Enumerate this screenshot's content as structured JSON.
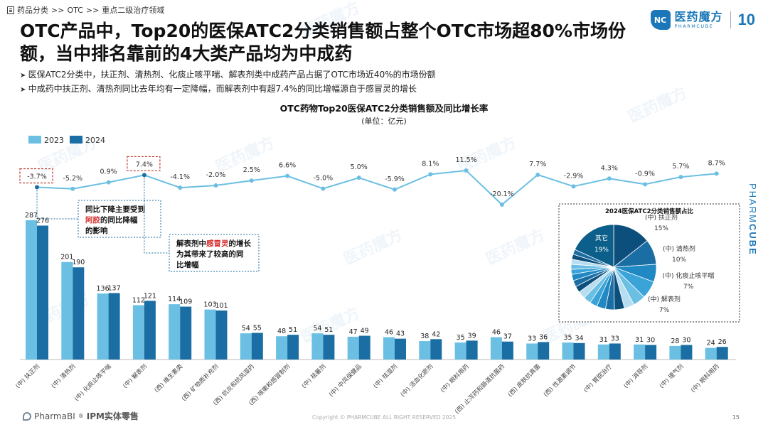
{
  "breadcrumb": [
    "药品分类",
    ">>",
    "OTC",
    ">>",
    "重点二级治疗领域"
  ],
  "logo": {
    "name": "医药魔方",
    "sub": "PHARMCUBE",
    "badge": "10",
    "mark": "NC"
  },
  "watermark_text": "医药魔方",
  "title": "OTC产品中，Top20的医保ATC2分类销售额占整个OTC市场超80%市场份额，当中排名靠前的4大类产品均为中成药",
  "bullets": [
    "医保ATC2分类中，扶正剂、清热剂、化痰止咳平喘、解表剂类中成药产品占据了OTC市场近40%的市场份额",
    "中成药中扶正剂、清热剂同比去年均有一定降幅，而解表剂中有超7.4%的同比增幅源自于感冒灵的增长"
  ],
  "side_brand": {
    "normal": "PHARM",
    "bold": "CUBE"
  },
  "colors": {
    "y2023": "#6bbfe3",
    "y2024": "#1a6ea3",
    "growth": "#6bbfe3",
    "dashed": "#c0392b",
    "callout": "#1a6ea3"
  },
  "chart_data": {
    "type": "bar",
    "title": "OTC药物Top20医保ATC2分类销售额及同比增长率",
    "subtitle": "(单位：亿元)",
    "legend": [
      "2023",
      "2024"
    ],
    "categories": [
      "(中) 扶正剂",
      "(中) 清热剂",
      "(中) 化痰止咳平喘",
      "(中) 解表剂",
      "(西) 维生素类",
      "(西) 矿物质补充剂",
      "(西) 抗炎和抗风湿药",
      "(西) 咳嗽和感冒制剂",
      "(中) 祛暑剂",
      "(中) 中风保健品",
      "(中) 祛湿剂",
      "(中) 活血化瘀剂",
      "(中) 眼科用药",
      "(西) 止泻药和肠道抗菌药",
      "(西) 皮肤抗真菌",
      "(西) 性激素调节",
      "(中) 胃脘治疗",
      "(中) 消导剂",
      "(中) 理气剂",
      "(中) 眼科用药"
    ],
    "series": [
      {
        "name": "2023",
        "values": [
          287,
          201,
          136,
          112,
          114,
          103,
          54,
          48,
          54,
          47,
          46,
          38,
          35,
          46,
          33,
          35,
          31,
          31,
          28,
          24
        ]
      },
      {
        "name": "2024",
        "values": [
          276,
          190,
          137,
          121,
          109,
          101,
          55,
          51,
          51,
          49,
          43,
          42,
          39,
          37,
          36,
          34,
          33,
          30,
          30,
          26
        ]
      }
    ],
    "bar_labels_2023": [
      "287",
      "201",
      "136",
      "112",
      "114",
      "103",
      "54",
      "48",
      "54",
      "47",
      "46",
      "38",
      "35",
      "46",
      "33",
      "35",
      "31",
      "31",
      "28",
      "24"
    ],
    "bar_labels_2024": [
      "276",
      "190",
      "137",
      "121",
      "109",
      "101",
      "55",
      "51",
      "51",
      "49",
      "43",
      "42",
      "39",
      "37",
      "36",
      "34",
      "33",
      "30",
      "30",
      "26"
    ],
    "growth_rates": [
      -3.7,
      -5.2,
      0.9,
      7.4,
      -4.1,
      -2.0,
      2.5,
      6.6,
      -5.0,
      5.0,
      -5.9,
      8.1,
      11.5,
      -20.1,
      7.7,
      -2.9,
      4.3,
      -0.9,
      5.7,
      8.7
    ],
    "growth_labels": [
      "-3.7%",
      "-5.2%",
      "0.9%",
      "7.4%",
      "-4.1%",
      "-2.0%",
      "2.5%",
      "6.6%",
      "-5.0%",
      "5.0%",
      "-5.9%",
      "8.1%",
      "11.5%",
      "-20.1%",
      "7.7%",
      "-2.9%",
      "4.3%",
      "-0.9%",
      "5.7%",
      "8.7%"
    ],
    "ylim": [
      0,
      310
    ],
    "callouts": [
      {
        "index": 0,
        "parts": [
          {
            "t": "同比下降主要受到"
          },
          {
            "t": "阿胶",
            "red": true
          },
          {
            "t": "的同比降幅的影响"
          }
        ]
      },
      {
        "index": 3,
        "parts": [
          {
            "t": "解表剂中"
          },
          {
            "t": "感冒灵",
            "red": true
          },
          {
            "t": "的增长为其带来了较高的同比增幅"
          }
        ]
      }
    ],
    "inset": {
      "type": "pie",
      "title": "2024医保ATC2分类销售额占比",
      "slices": [
        {
          "label": "(中) 扶正剂",
          "value": 15,
          "pct": "15%",
          "color": "#0d4f7c"
        },
        {
          "label": "(中) 清热剂",
          "value": 10,
          "pct": "10%",
          "color": "#1a6ea3"
        },
        {
          "label": "(中) 化痰止咳平喘",
          "value": 7,
          "pct": "7%",
          "color": "#2088c2"
        },
        {
          "label": "(中) 解表剂",
          "value": 7,
          "pct": "7%",
          "color": "#3aa3d8"
        },
        {
          "label": "",
          "value": 5,
          "color": "#6bbfe3"
        },
        {
          "label": "",
          "value": 4,
          "color": "#b7ddf0"
        },
        {
          "label": "",
          "value": 4,
          "color": "#0d4f7c"
        },
        {
          "label": "",
          "value": 3.5,
          "color": "#1a6ea3"
        },
        {
          "label": "",
          "value": 3.5,
          "color": "#2088c2"
        },
        {
          "label": "",
          "value": 3,
          "color": "#3aa3d8"
        },
        {
          "label": "",
          "value": 3,
          "color": "#6bbfe3"
        },
        {
          "label": "",
          "value": 3,
          "color": "#b7ddf0"
        },
        {
          "label": "",
          "value": 2.5,
          "color": "#0d4f7c"
        },
        {
          "label": "",
          "value": 2.5,
          "color": "#1a6ea3"
        },
        {
          "label": "",
          "value": 2.5,
          "color": "#2088c2"
        },
        {
          "label": "",
          "value": 2,
          "color": "#3aa3d8"
        },
        {
          "label": "",
          "value": 2,
          "color": "#6bbfe3"
        },
        {
          "label": "",
          "value": 2,
          "color": "#b7ddf0"
        },
        {
          "label": "",
          "value": 2,
          "color": "#0d4f7c"
        },
        {
          "label": "",
          "value": 2,
          "color": "#1a6ea3"
        },
        {
          "label": "其它",
          "value": 19,
          "pct": "19%",
          "color": "#0b5f8a"
        }
      ]
    }
  },
  "footer": {
    "brand": "PharmaBI",
    "reg": "®",
    "product": "IPM实体零售",
    "copyright": "Copyright © PHARMCUBE ALL RIGHT RESERVED 2025",
    "page": "15"
  }
}
